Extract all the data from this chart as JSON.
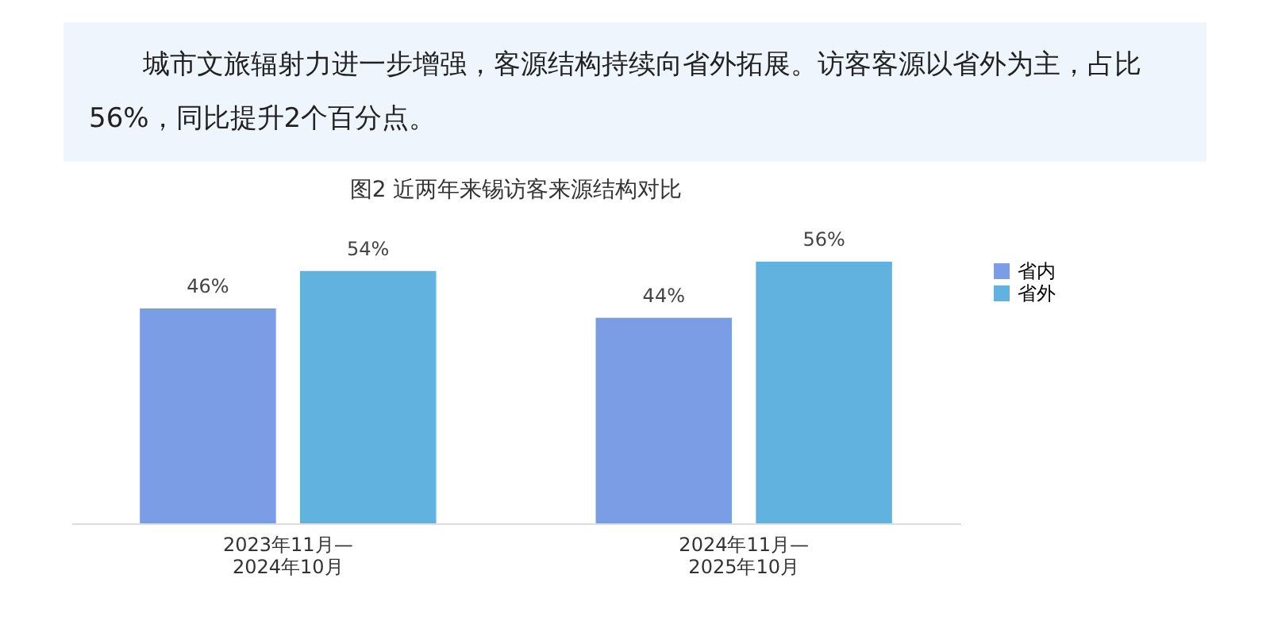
{
  "chart_data": {
    "type": "bar",
    "title": "图2 近两年来锡访客来源结构对比",
    "subtitle": "城市文旅辐射力进一步增强，客源结构持续向省外拓展。访客客源以省外为主，占比56%，同比提升2个百分点。",
    "categories": [
      "2023年11月—\n2024年10月",
      "2024年11月—\n2025年10月"
    ],
    "series": [
      {
        "name": "省内",
        "color": "#7a9de6",
        "values": [
          46,
          44
        ],
        "value_labels": [
          "46%",
          "44%"
        ]
      },
      {
        "name": "省外",
        "color": "#62b2e0",
        "values": [
          54,
          56
        ],
        "value_labels": [
          "54%",
          "56%"
        ]
      }
    ],
    "legend": "right"
  }
}
